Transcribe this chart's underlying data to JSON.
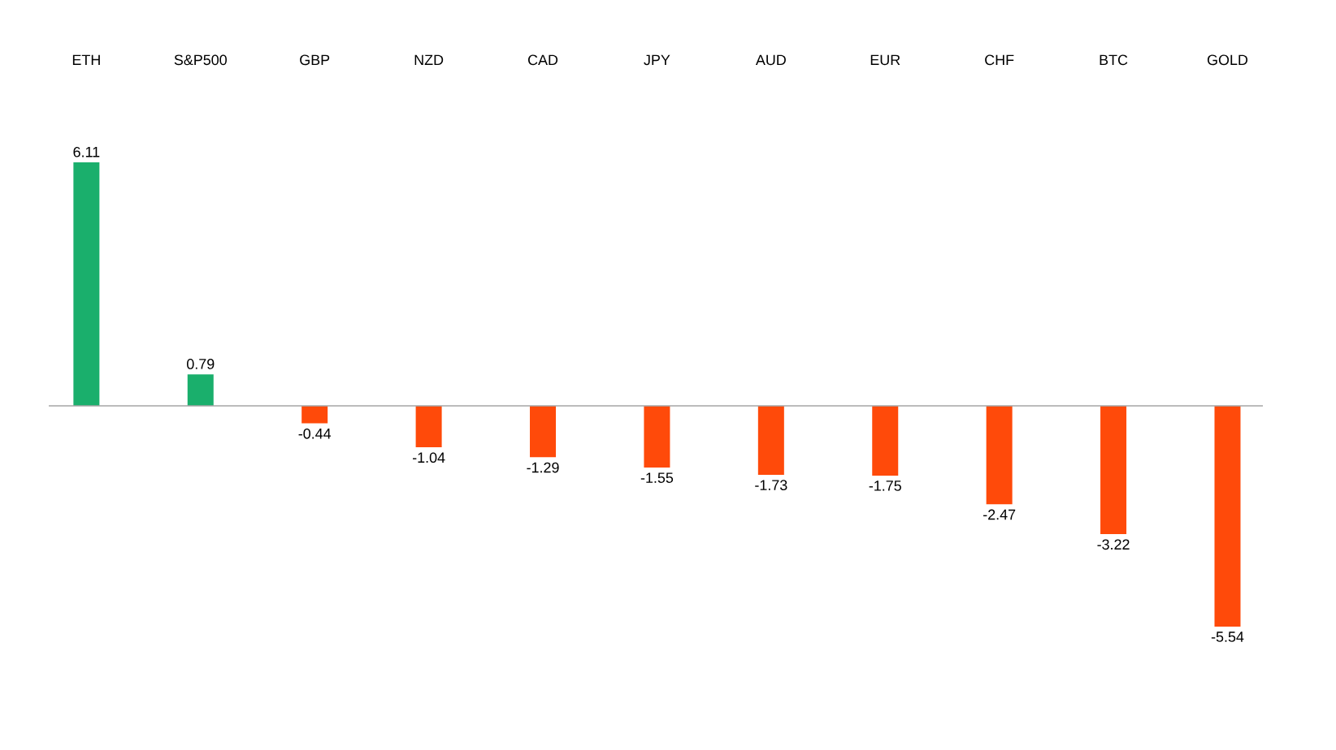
{
  "chart_data": {
    "type": "bar",
    "categories": [
      "ETH",
      "S&P500",
      "GBP",
      "NZD",
      "CAD",
      "JPY",
      "AUD",
      "EUR",
      "CHF",
      "BTC",
      "GOLD"
    ],
    "values": [
      6.11,
      0.79,
      -0.44,
      -1.04,
      -1.29,
      -1.55,
      -1.73,
      -1.75,
      -2.47,
      -3.22,
      -5.54
    ],
    "colors": [
      "#1aaf6c",
      "#1aaf6c",
      "#ff4a0a",
      "#ff4a0a",
      "#ff4a0a",
      "#ff4a0a",
      "#ff4a0a",
      "#ff4a0a",
      "#ff4a0a",
      "#ff4a0a",
      "#ff4a0a"
    ],
    "data_labels": true
  }
}
